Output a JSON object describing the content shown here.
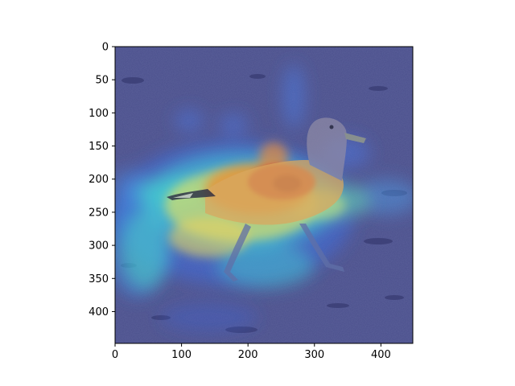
{
  "figure": {
    "background": "#ffffff",
    "image_description_colormap": "jet",
    "axis_color": "#000000"
  },
  "image": {
    "subject": "seagull-walking-on-sand",
    "overlay": "heatmap",
    "extent": {
      "x": [
        0,
        448
      ],
      "y": [
        0,
        448
      ]
    }
  },
  "axes": {
    "x": {
      "ticks": [
        0,
        100,
        200,
        300,
        400
      ],
      "tick_labels": [
        "0",
        "100",
        "200",
        "300",
        "400"
      ],
      "range": [
        0,
        448
      ]
    },
    "y": {
      "ticks": [
        0,
        50,
        100,
        150,
        200,
        250,
        300,
        350,
        400
      ],
      "tick_labels": [
        "0",
        "50",
        "100",
        "150",
        "200",
        "250",
        "300",
        "350",
        "400"
      ],
      "range": [
        0,
        448
      ],
      "inverted": true
    }
  }
}
